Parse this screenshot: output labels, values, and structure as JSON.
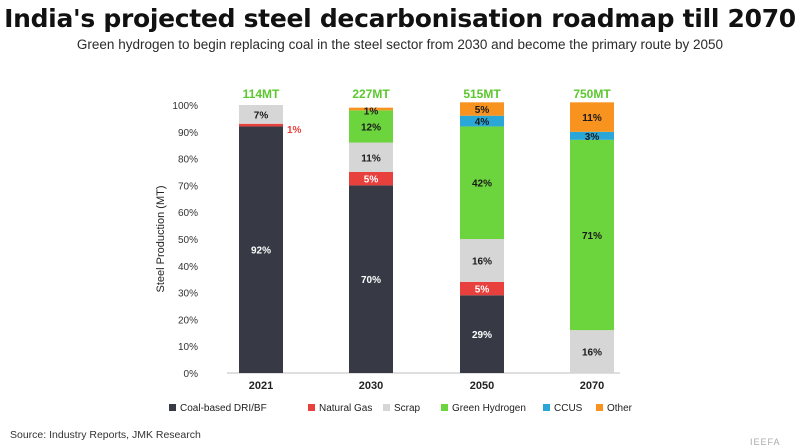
{
  "title": "India's projected steel decarbonisation roadmap till 2070",
  "subtitle": "Green hydrogen to begin replacing coal in the steel sector from 2030 and become the primary route by 2050",
  "source": "Source: Industry Reports, JMK Research",
  "watermark": "IEEFA",
  "colors": {
    "coal": "#373a45",
    "natural_gas": "#e8403d",
    "scrap": "#d6d6d6",
    "green_hydrogen": "#6cd53d",
    "ccus": "#2aa7d6",
    "other": "#f7931e",
    "total_label": "#5cc72e"
  },
  "chart_data": {
    "type": "bar",
    "stacked": true,
    "categories": [
      "2021",
      "2030",
      "2050",
      "2070"
    ],
    "totals": [
      "114MT",
      "227MT",
      "515MT",
      "750MT"
    ],
    "ylabel": "Steel Production (MT)",
    "ylim": [
      0,
      100
    ],
    "yticks": [
      "0%",
      "10%",
      "20%",
      "30%",
      "40%",
      "50%",
      "60%",
      "70%",
      "80%",
      "90%",
      "100%"
    ],
    "legend_position": "bottom",
    "series": [
      {
        "name": "Coal-based DRI/BF",
        "color_key": "coal",
        "values": [
          92,
          70,
          29,
          0
        ],
        "labels": [
          "92%",
          "70%",
          "29%",
          ""
        ]
      },
      {
        "name": "Natural Gas",
        "color_key": "natural_gas",
        "values": [
          1,
          5,
          5,
          0
        ],
        "labels": [
          "1%",
          "5%",
          "5%",
          ""
        ]
      },
      {
        "name": "Scrap",
        "color_key": "scrap",
        "values": [
          7,
          11,
          16,
          16
        ],
        "labels": [
          "7%",
          "11%",
          "16%",
          "16%"
        ]
      },
      {
        "name": "Green Hydrogen",
        "color_key": "green_hydrogen",
        "values": [
          0,
          12,
          42,
          71
        ],
        "labels": [
          "",
          "12%",
          "42%",
          "71%"
        ]
      },
      {
        "name": "CCUS",
        "color_key": "ccus",
        "values": [
          0,
          0,
          4,
          3
        ],
        "labels": [
          "",
          "",
          "4%",
          "3%"
        ]
      },
      {
        "name": "Other",
        "color_key": "other",
        "values": [
          0,
          1,
          5,
          11
        ],
        "labels": [
          "",
          "1%",
          "5%",
          "11%"
        ]
      }
    ]
  }
}
